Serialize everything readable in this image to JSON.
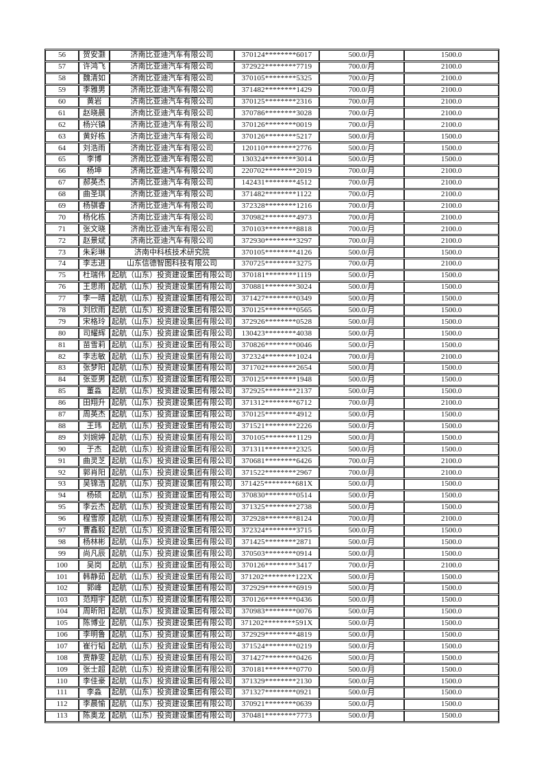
{
  "page": {
    "background_color": "#ffffff",
    "text_color": "#111111",
    "border_color": "#1c1c1c"
  },
  "table": {
    "columns": [
      {
        "key": "seq",
        "name": "row-number"
      },
      {
        "key": "name",
        "name": "person-name"
      },
      {
        "key": "company",
        "name": "company-name"
      },
      {
        "key": "id",
        "name": "id-number-masked"
      },
      {
        "key": "monthly",
        "name": "monthly-amount"
      },
      {
        "key": "total",
        "name": "total-amount"
      }
    ],
    "rows": [
      {
        "seq": "56",
        "name": "贺安灏",
        "company": "济南比亚迪汽车有限公司",
        "id": "370124********6017",
        "monthly": "500.0/月",
        "total": "1500.0"
      },
      {
        "seq": "57",
        "name": "许鸿飞",
        "company": "济南比亚迪汽车有限公司",
        "id": "372922********7719",
        "monthly": "700.0/月",
        "total": "2100.0"
      },
      {
        "seq": "58",
        "name": "魏清如",
        "company": "济南比亚迪汽车有限公司",
        "id": "370105********5325",
        "monthly": "700.0/月",
        "total": "2100.0"
      },
      {
        "seq": "59",
        "name": "李雅男",
        "company": "济南比亚迪汽车有限公司",
        "id": "371482********1429",
        "monthly": "700.0/月",
        "total": "2100.0"
      },
      {
        "seq": "60",
        "name": "黄岩",
        "company": "济南比亚迪汽车有限公司",
        "id": "370125********2316",
        "monthly": "700.0/月",
        "total": "2100.0"
      },
      {
        "seq": "61",
        "name": "赵晓晨",
        "company": "济南比亚迪汽车有限公司",
        "id": "370786********3028",
        "monthly": "700.0/月",
        "total": "2100.0"
      },
      {
        "seq": "62",
        "name": "杨兴镇",
        "company": "济南比亚迪汽车有限公司",
        "id": "370126********0019",
        "monthly": "700.0/月",
        "total": "2100.0"
      },
      {
        "seq": "63",
        "name": "黄好栋",
        "company": "济南比亚迪汽车有限公司",
        "id": "370126********5217",
        "monthly": "500.0/月",
        "total": "1500.0"
      },
      {
        "seq": "64",
        "name": "刘浩雨",
        "company": "济南比亚迪汽车有限公司",
        "id": "120110********2776",
        "monthly": "500.0/月",
        "total": "1500.0"
      },
      {
        "seq": "65",
        "name": "李博",
        "company": "济南比亚迪汽车有限公司",
        "id": "130324********3014",
        "monthly": "500.0/月",
        "total": "1500.0"
      },
      {
        "seq": "66",
        "name": "杨坤",
        "company": "济南比亚迪汽车有限公司",
        "id": "220702********2019",
        "monthly": "700.0/月",
        "total": "2100.0"
      },
      {
        "seq": "67",
        "name": "郝英杰",
        "company": "济南比亚迪汽车有限公司",
        "id": "142431********4512",
        "monthly": "700.0/月",
        "total": "2100.0"
      },
      {
        "seq": "68",
        "name": "曲圣琪",
        "company": "济南比亚迪汽车有限公司",
        "id": "371482********1122",
        "monthly": "700.0/月",
        "total": "2100.0"
      },
      {
        "seq": "69",
        "name": "杨骐睿",
        "company": "济南比亚迪汽车有限公司",
        "id": "372328********1216",
        "monthly": "700.0/月",
        "total": "2100.0"
      },
      {
        "seq": "70",
        "name": "杨化栋",
        "company": "济南比亚迪汽车有限公司",
        "id": "370982********4973",
        "monthly": "700.0/月",
        "total": "2100.0"
      },
      {
        "seq": "71",
        "name": "张文晓",
        "company": "济南比亚迪汽车有限公司",
        "id": "370103********8818",
        "monthly": "700.0/月",
        "total": "2100.0"
      },
      {
        "seq": "72",
        "name": "赵景斌",
        "company": "济南比亚迪汽车有限公司",
        "id": "372930********3297",
        "monthly": "700.0/月",
        "total": "2100.0"
      },
      {
        "seq": "73",
        "name": "朱彩琳",
        "company": "济南中科核技术研究院",
        "id": "370105********4126",
        "monthly": "500.0/月",
        "total": "1500.0"
      },
      {
        "seq": "74",
        "name": "李志进",
        "company": "山东信德智图科技有限公司",
        "id": "370725********3275",
        "monthly": "700.0/月",
        "total": "2100.0"
      },
      {
        "seq": "75",
        "name": "杜瑞伟",
        "company": "起航（山东）投资建设集团有限公司",
        "id": "370181********1119",
        "monthly": "500.0/月",
        "total": "1500.0"
      },
      {
        "seq": "76",
        "name": "王思雨",
        "company": "起航（山东）投资建设集团有限公司",
        "id": "370881********3024",
        "monthly": "500.0/月",
        "total": "1500.0"
      },
      {
        "seq": "77",
        "name": "李一晴",
        "company": "起航（山东）投资建设集团有限公司",
        "id": "371427********0349",
        "monthly": "500.0/月",
        "total": "1500.0"
      },
      {
        "seq": "78",
        "name": "刘欣雨",
        "company": "起航（山东）投资建设集团有限公司",
        "id": "370125********0565",
        "monthly": "500.0/月",
        "total": "1500.0"
      },
      {
        "seq": "79",
        "name": "宋格玲",
        "company": "起航（山东）投资建设集团有限公司",
        "id": "372926********0528",
        "monthly": "500.0/月",
        "total": "1500.0"
      },
      {
        "seq": "80",
        "name": "司耀辉",
        "company": "起航（山东）投资建设集团有限公司",
        "id": "130423********4038",
        "monthly": "500.0/月",
        "total": "1500.0"
      },
      {
        "seq": "81",
        "name": "苗雪莉",
        "company": "起航（山东）投资建设集团有限公司",
        "id": "370826********0046",
        "monthly": "500.0/月",
        "total": "1500.0"
      },
      {
        "seq": "82",
        "name": "李志敏",
        "company": "起航（山东）投资建设集团有限公司",
        "id": "372324********1024",
        "monthly": "700.0/月",
        "total": "2100.0"
      },
      {
        "seq": "83",
        "name": "张梦阳",
        "company": "起航（山东）投资建设集团有限公司",
        "id": "371702********2654",
        "monthly": "500.0/月",
        "total": "1500.0"
      },
      {
        "seq": "84",
        "name": "张亚男",
        "company": "起航（山东）投资建设集团有限公司",
        "id": "370125********1948",
        "monthly": "500.0/月",
        "total": "1500.0"
      },
      {
        "seq": "85",
        "name": "董淼",
        "company": "起航（山东）投资建设集团有限公司",
        "id": "372925********2137",
        "monthly": "500.0/月",
        "total": "1500.0"
      },
      {
        "seq": "86",
        "name": "田翔升",
        "company": "起航（山东）投资建设集团有限公司",
        "id": "371312********6712",
        "monthly": "700.0/月",
        "total": "2100.0"
      },
      {
        "seq": "87",
        "name": "周英杰",
        "company": "起航（山东）投资建设集团有限公司",
        "id": "370125********4912",
        "monthly": "500.0/月",
        "total": "1500.0"
      },
      {
        "seq": "88",
        "name": "王玮",
        "company": "起航（山东）投资建设集团有限公司",
        "id": "371521********2226",
        "monthly": "500.0/月",
        "total": "1500.0"
      },
      {
        "seq": "89",
        "name": "刘婉婷",
        "company": "起航（山东）投资建设集团有限公司",
        "id": "370105********1129",
        "monthly": "500.0/月",
        "total": "1500.0"
      },
      {
        "seq": "90",
        "name": "于杰",
        "company": "起航（山东）投资建设集团有限公司",
        "id": "371311********2325",
        "monthly": "500.0/月",
        "total": "1500.0"
      },
      {
        "seq": "91",
        "name": "曲灵芝",
        "company": "起航（山东）投资建设集团有限公司",
        "id": "370681********6426",
        "monthly": "700.0/月",
        "total": "2100.0"
      },
      {
        "seq": "92",
        "name": "郭肖阳",
        "company": "起航（山东）投资建设集团有限公司",
        "id": "371522********2967",
        "monthly": "700.0/月",
        "total": "2100.0"
      },
      {
        "seq": "93",
        "name": "吴锦浩",
        "company": "起航（山东）投资建设集团有限公司",
        "id": "371425********681X",
        "monthly": "500.0/月",
        "total": "1500.0"
      },
      {
        "seq": "94",
        "name": "杨硕",
        "company": "起航（山东）投资建设集团有限公司",
        "id": "370830********0514",
        "monthly": "500.0/月",
        "total": "1500.0"
      },
      {
        "seq": "95",
        "name": "李云杰",
        "company": "起航（山东）投资建设集团有限公司",
        "id": "371325********2738",
        "monthly": "500.0/月",
        "total": "1500.0"
      },
      {
        "seq": "96",
        "name": "程雪原",
        "company": "起航（山东）投资建设集团有限公司",
        "id": "372928********8124",
        "monthly": "700.0/月",
        "total": "2100.0"
      },
      {
        "seq": "97",
        "name": "曹鑫毅",
        "company": "起航（山东）投资建设集团有限公司",
        "id": "372324********3715",
        "monthly": "500.0/月",
        "total": "1500.0"
      },
      {
        "seq": "98",
        "name": "杨林彬",
        "company": "起航（山东）投资建设集团有限公司",
        "id": "371425********2871",
        "monthly": "500.0/月",
        "total": "1500.0"
      },
      {
        "seq": "99",
        "name": "尚凡辰",
        "company": "起航（山东）投资建设集团有限公司",
        "id": "370503********0914",
        "monthly": "500.0/月",
        "total": "1500.0"
      },
      {
        "seq": "100",
        "name": "吴岗",
        "company": "起航（山东）投资建设集团有限公司",
        "id": "370126********3417",
        "monthly": "700.0/月",
        "total": "2100.0"
      },
      {
        "seq": "101",
        "name": "韩静茹",
        "company": "起航（山东）投资建设集团有限公司",
        "id": "371202********122X",
        "monthly": "500.0/月",
        "total": "1500.0"
      },
      {
        "seq": "102",
        "name": "郭峰",
        "company": "起航（山东）投资建设集团有限公司",
        "id": "372929********6919",
        "monthly": "500.0/月",
        "total": "1500.0"
      },
      {
        "seq": "103",
        "name": "范翔宇",
        "company": "起航（山东）投资建设集团有限公司",
        "id": "370126********0436",
        "monthly": "500.0/月",
        "total": "1500.0"
      },
      {
        "seq": "104",
        "name": "周昕阳",
        "company": "起航（山东）投资建设集团有限公司",
        "id": "370983********0076",
        "monthly": "500.0/月",
        "total": "1500.0"
      },
      {
        "seq": "105",
        "name": "陈博业",
        "company": "起航（山东）投资建设集团有限公司",
        "id": "371202********591X",
        "monthly": "500.0/月",
        "total": "1500.0"
      },
      {
        "seq": "106",
        "name": "李明鲁",
        "company": "起航（山东）投资建设集团有限公司",
        "id": "372929********4819",
        "monthly": "500.0/月",
        "total": "1500.0"
      },
      {
        "seq": "107",
        "name": "崔行韬",
        "company": "起航（山东）投资建设集团有限公司",
        "id": "371524********0219",
        "monthly": "500.0/月",
        "total": "1500.0"
      },
      {
        "seq": "108",
        "name": "贾静雯",
        "company": "起航（山东）投资建设集团有限公司",
        "id": "371427********0426",
        "monthly": "500.0/月",
        "total": "1500.0"
      },
      {
        "seq": "109",
        "name": "张士超",
        "company": "起航（山东）投资建设集团有限公司",
        "id": "370181********0770",
        "monthly": "500.0/月",
        "total": "1500.0"
      },
      {
        "seq": "110",
        "name": "李佳豪",
        "company": "起航（山东）投资建设集团有限公司",
        "id": "371329********2130",
        "monthly": "500.0/月",
        "total": "1500.0"
      },
      {
        "seq": "111",
        "name": "李淼",
        "company": "起航（山东）投资建设集团有限公司",
        "id": "371327********0921",
        "monthly": "500.0/月",
        "total": "1500.0"
      },
      {
        "seq": "112",
        "name": "李晨愉",
        "company": "起航（山东）投资建设集团有限公司",
        "id": "370921********0639",
        "monthly": "500.0/月",
        "total": "1500.0"
      },
      {
        "seq": "113",
        "name": "陈奥龙",
        "company": "起航（山东）投资建设集团有限公司",
        "id": "370481********7773",
        "monthly": "500.0/月",
        "total": "1500.0"
      }
    ]
  }
}
